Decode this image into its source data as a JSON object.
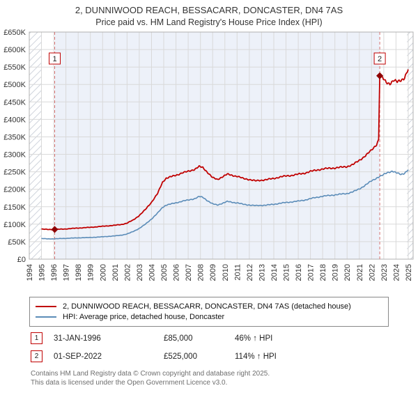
{
  "title": "2, DUNNIWOOD REACH, BESSACARR, DONCASTER, DN4 7AS",
  "subtitle": "Price paid vs. HM Land Registry's House Price Index (HPI)",
  "chart_data": {
    "type": "line",
    "title": "Price paid vs. HPI",
    "xlabel": "",
    "ylabel": "",
    "x_range": [
      1994,
      2025.4
    ],
    "x_years": [
      1994,
      1995,
      1996,
      1997,
      1998,
      1999,
      2000,
      2001,
      2002,
      2003,
      2004,
      2005,
      2006,
      2007,
      2008,
      2009,
      2010,
      2011,
      2012,
      2013,
      2014,
      2015,
      2016,
      2017,
      2018,
      2019,
      2020,
      2021,
      2022,
      2023,
      2024,
      2025
    ],
    "ylim": [
      0,
      650000
    ],
    "y_tick_step": 50000,
    "y_tick_labels": [
      "£0",
      "£50K",
      "£100K",
      "£150K",
      "£200K",
      "£250K",
      "£300K",
      "£350K",
      "£400K",
      "£450K",
      "£500K",
      "£550K",
      "£600K",
      "£650K"
    ],
    "grid": true,
    "legend_position": "bottom",
    "band_color": "#edf1f9",
    "shaded_region": [
      1996.08,
      2022.67
    ],
    "hatch_regions": [
      [
        1994,
        1995.0
      ],
      [
        2024.9,
        2025.4
      ]
    ],
    "series": [
      {
        "name": "2, DUNNIWOOD REACH, BESSACARR, DONCASTER, DN4 7AS (detached house)",
        "color": "#c00000",
        "width": 1.8,
        "points": [
          [
            1995.0,
            86000
          ],
          [
            1995.5,
            85000
          ],
          [
            1996.08,
            85000
          ],
          [
            1997.0,
            86500
          ],
          [
            1998.0,
            89000
          ],
          [
            1999.0,
            91000
          ],
          [
            2000.0,
            94000
          ],
          [
            2001.0,
            97000
          ],
          [
            2001.5,
            99000
          ],
          [
            2002.0,
            103000
          ],
          [
            2002.5,
            112000
          ],
          [
            2003.0,
            125000
          ],
          [
            2003.5,
            142000
          ],
          [
            2004.0,
            163000
          ],
          [
            2004.5,
            188000
          ],
          [
            2004.9,
            220000
          ],
          [
            2005.2,
            232000
          ],
          [
            2005.6,
            236000
          ],
          [
            2006.0,
            240000
          ],
          [
            2006.5,
            247000
          ],
          [
            2007.0,
            251000
          ],
          [
            2007.5,
            257000
          ],
          [
            2007.9,
            265000
          ],
          [
            2008.2,
            262000
          ],
          [
            2008.6,
            248000
          ],
          [
            2009.0,
            233000
          ],
          [
            2009.4,
            228000
          ],
          [
            2009.8,
            236000
          ],
          [
            2010.2,
            243000
          ],
          [
            2010.6,
            240000
          ],
          [
            2011.0,
            237000
          ],
          [
            2011.5,
            231000
          ],
          [
            2012.0,
            228000
          ],
          [
            2012.5,
            224000
          ],
          [
            2013.0,
            226000
          ],
          [
            2013.5,
            228000
          ],
          [
            2014.0,
            231000
          ],
          [
            2014.5,
            235000
          ],
          [
            2015.0,
            238000
          ],
          [
            2015.5,
            240000
          ],
          [
            2016.0,
            243000
          ],
          [
            2016.5,
            246000
          ],
          [
            2017.0,
            251000
          ],
          [
            2017.5,
            255000
          ],
          [
            2018.0,
            258000
          ],
          [
            2018.5,
            260000
          ],
          [
            2019.0,
            261000
          ],
          [
            2019.5,
            263000
          ],
          [
            2020.0,
            265000
          ],
          [
            2020.5,
            271000
          ],
          [
            2021.0,
            283000
          ],
          [
            2021.5,
            296000
          ],
          [
            2022.0,
            312000
          ],
          [
            2022.4,
            328000
          ],
          [
            2022.58,
            342000
          ],
          [
            2022.67,
            525000
          ],
          [
            2022.9,
            518000
          ],
          [
            2023.2,
            506000
          ],
          [
            2023.5,
            503000
          ],
          [
            2023.8,
            511000
          ],
          [
            2024.1,
            507000
          ],
          [
            2024.4,
            513000
          ],
          [
            2024.7,
            519000
          ],
          [
            2025.0,
            543000
          ]
        ]
      },
      {
        "name": "HPI: Average price, detached house, Doncaster",
        "color": "#5b8cb8",
        "width": 1.6,
        "points": [
          [
            1995.0,
            59000
          ],
          [
            1995.5,
            58000
          ],
          [
            1996.08,
            58200
          ],
          [
            1997.0,
            59500
          ],
          [
            1998.0,
            61000
          ],
          [
            1999.0,
            62000
          ],
          [
            2000.0,
            64000
          ],
          [
            2001.0,
            66500
          ],
          [
            2001.5,
            68500
          ],
          [
            2002.0,
            72000
          ],
          [
            2002.5,
            79000
          ],
          [
            2003.0,
            88000
          ],
          [
            2003.5,
            100000
          ],
          [
            2004.0,
            115000
          ],
          [
            2004.5,
            132000
          ],
          [
            2004.9,
            148000
          ],
          [
            2005.2,
            155000
          ],
          [
            2005.6,
            158000
          ],
          [
            2006.0,
            161000
          ],
          [
            2006.5,
            166000
          ],
          [
            2007.0,
            169000
          ],
          [
            2007.5,
            173000
          ],
          [
            2007.9,
            179000
          ],
          [
            2008.2,
            177000
          ],
          [
            2008.6,
            167000
          ],
          [
            2009.0,
            158000
          ],
          [
            2009.4,
            155000
          ],
          [
            2009.8,
            160000
          ],
          [
            2010.2,
            165000
          ],
          [
            2010.6,
            163000
          ],
          [
            2011.0,
            161000
          ],
          [
            2011.5,
            157000
          ],
          [
            2012.0,
            155000
          ],
          [
            2012.5,
            153000
          ],
          [
            2013.0,
            154000
          ],
          [
            2013.5,
            155000
          ],
          [
            2014.0,
            157000
          ],
          [
            2014.5,
            160000
          ],
          [
            2015.0,
            162000
          ],
          [
            2015.5,
            164000
          ],
          [
            2016.0,
            166000
          ],
          [
            2016.5,
            169000
          ],
          [
            2017.0,
            173000
          ],
          [
            2017.5,
            177000
          ],
          [
            2018.0,
            180000
          ],
          [
            2018.5,
            182000
          ],
          [
            2019.0,
            184000
          ],
          [
            2019.5,
            186000
          ],
          [
            2020.0,
            188000
          ],
          [
            2020.5,
            193000
          ],
          [
            2021.0,
            201000
          ],
          [
            2021.5,
            212000
          ],
          [
            2022.0,
            224000
          ],
          [
            2022.5,
            234000
          ],
          [
            2022.9,
            240000
          ],
          [
            2023.3,
            248000
          ],
          [
            2023.7,
            252000
          ],
          [
            2024.0,
            247000
          ],
          [
            2024.4,
            243000
          ],
          [
            2024.7,
            246000
          ],
          [
            2025.0,
            256000
          ]
        ]
      }
    ],
    "sale_markers": [
      {
        "label": "1",
        "year": 1996.08,
        "value": 85000
      },
      {
        "label": "2",
        "year": 2022.67,
        "value": 525000
      }
    ],
    "marker_color": "#8e0000",
    "dashed_line_color": "#d4706f"
  },
  "legend": {
    "items": [
      {
        "label": "2, DUNNIWOOD REACH, BESSACARR, DONCASTER, DN4 7AS (detached house)",
        "color": "#c00000"
      },
      {
        "label": "HPI: Average price, detached house, Doncaster",
        "color": "#5b8cb8"
      }
    ]
  },
  "sales": [
    {
      "n": "1",
      "date": "31-JAN-1996",
      "price": "£85,000",
      "hpi": "46% ↑ HPI"
    },
    {
      "n": "2",
      "date": "01-SEP-2022",
      "price": "£525,000",
      "hpi": "114% ↑ HPI"
    }
  ],
  "footer": {
    "line1": "Contains HM Land Registry data © Crown copyright and database right 2025.",
    "line2": "This data is licensed under the Open Government Licence v3.0."
  }
}
